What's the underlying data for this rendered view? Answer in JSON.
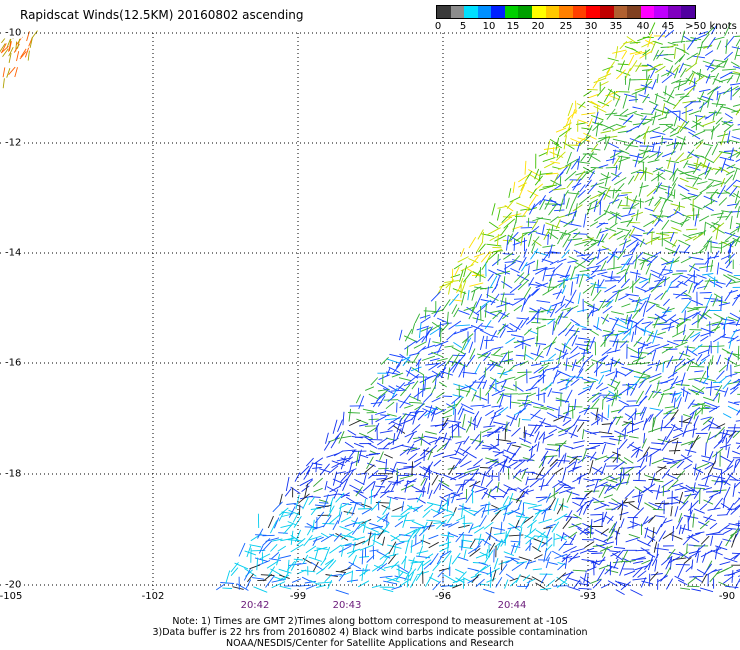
{
  "title": "Rapidscat Winds(12.5KM) 20160802 ascending",
  "colorbar": {
    "colors": [
      "#3a3a3a",
      "#8c8c8c",
      "#00e0ff",
      "#0090ff",
      "#0020ff",
      "#00d000",
      "#00a000",
      "#ffff00",
      "#ffc800",
      "#ff8000",
      "#ff4000",
      "#ff0000",
      "#c00000",
      "#b06030",
      "#804020",
      "#ff00ff",
      "#c000ff",
      "#8000c0",
      "#5000a0"
    ],
    "labels": [
      "0",
      "5",
      "10",
      "15",
      "20",
      "25",
      "30",
      "35",
      "40",
      "45",
      ">50 knots"
    ]
  },
  "latitude_labels": [
    "-10",
    "-12",
    "-14",
    "-16",
    "-18",
    "-20"
  ],
  "longitude_labels": [
    "-105",
    "-102",
    "-99",
    "-96",
    "-93",
    "-90"
  ],
  "time_labels": [
    "20:42",
    "20:43",
    "20:44"
  ],
  "notes": [
    "Note: 1) Times are GMT 2)Times along bottom correspond to measurement at -10S",
    "3)Data buffer is 22 hrs from 20160802 4) Black wind barbs indicate possible contamination",
    "NOAA/NESDIS/Center for Satellite Applications and Research"
  ]
}
